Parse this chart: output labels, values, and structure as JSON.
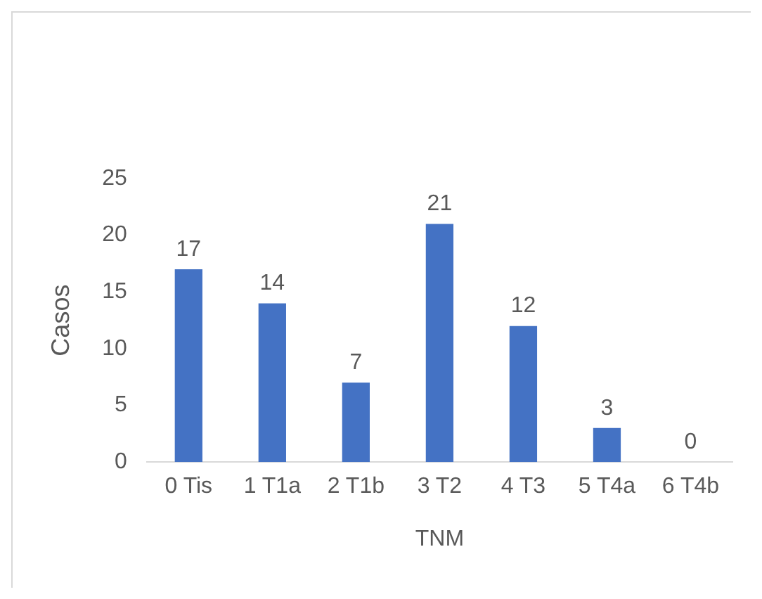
{
  "chart_data": {
    "type": "bar",
    "xlabel": "TNM",
    "ylabel": "Casos",
    "categories": [
      "0 Tis",
      "1 T1a",
      "2 T1b",
      "3 T2",
      "4 T3",
      "5 T4a",
      "6 T4b"
    ],
    "values": [
      17,
      14,
      7,
      21,
      12,
      3,
      0
    ],
    "color": "#4472c4",
    "ylim": [
      0,
      25
    ],
    "yticks": [
      0,
      5,
      10,
      15,
      20,
      25
    ],
    "grid": false,
    "data_labels": true
  }
}
